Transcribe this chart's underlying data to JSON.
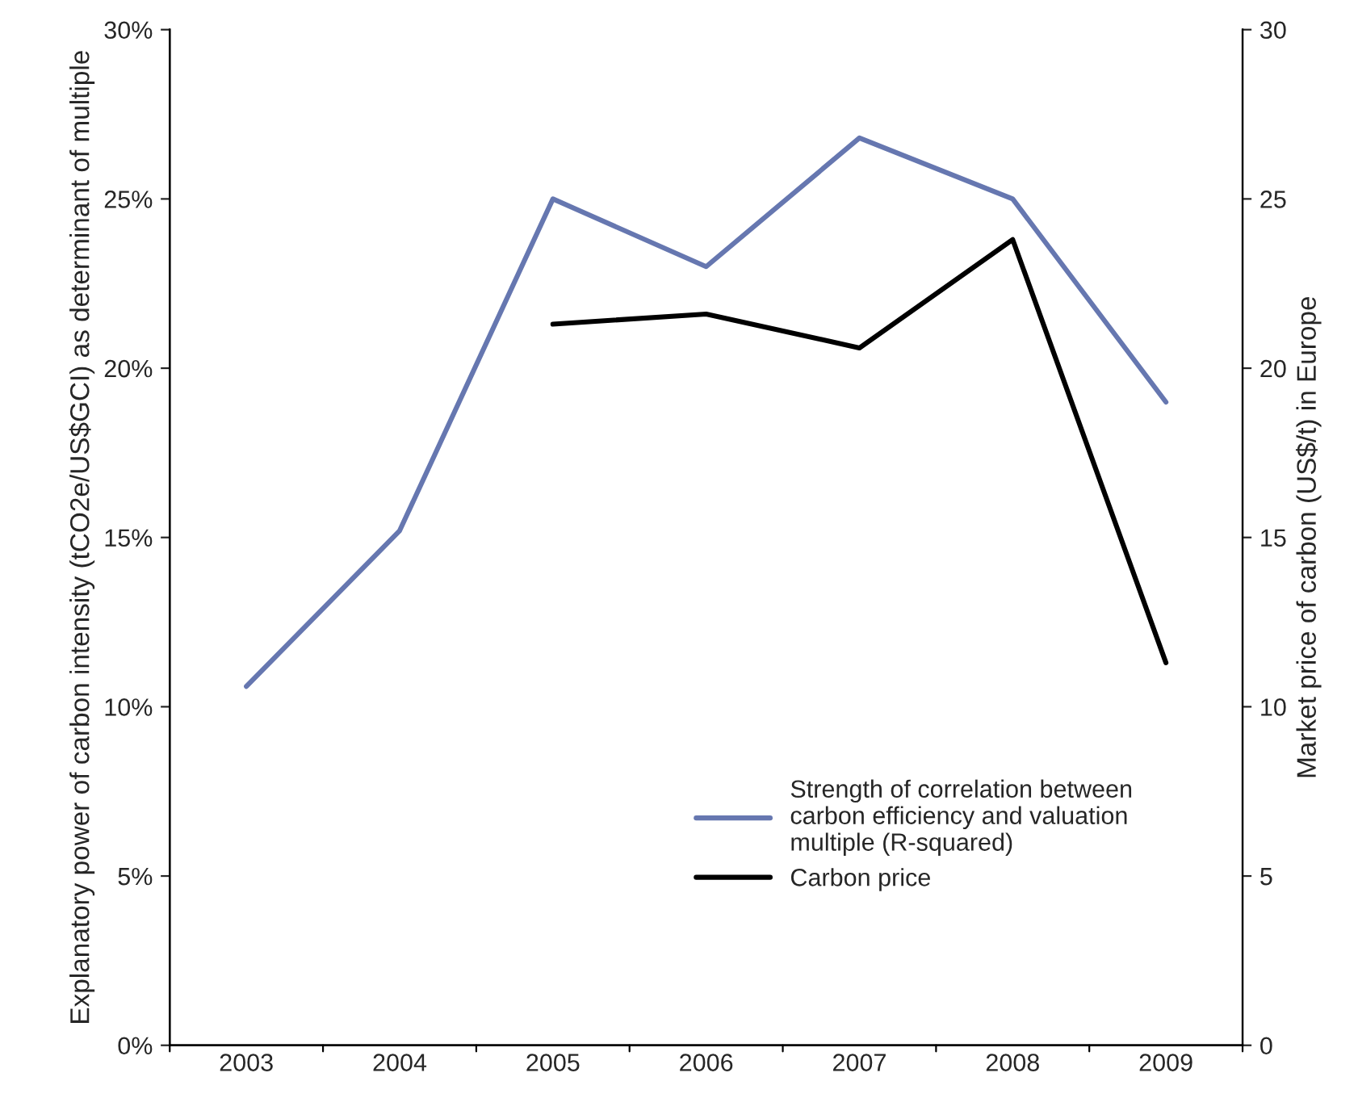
{
  "chart_data": {
    "type": "line",
    "ylabel": "Explanatory power of carbon intensity (tCO2e/US$GCI) as determinant of multiple",
    "y2label": "Market price of carbon (US$/t) in Europe",
    "categories": [
      "2003",
      "2004",
      "2005",
      "2006",
      "2007",
      "2008",
      "2009"
    ],
    "series": [
      {
        "name": "Strength of correlation between carbon efficiency and valuation multiple (R-squared)",
        "color": "#6677b0",
        "values": [
          10.6,
          15.2,
          25.0,
          23.0,
          26.8,
          25.0,
          19.0
        ]
      },
      {
        "name": "Carbon price",
        "color": "#000000",
        "axis": "y2",
        "values": [
          null,
          null,
          21.3,
          21.6,
          20.6,
          23.8,
          11.3
        ]
      }
    ],
    "ylim": [
      0,
      30
    ],
    "yticks": [
      {
        "value": 0,
        "label": "0%"
      },
      {
        "value": 5,
        "label": "5%"
      },
      {
        "value": 10,
        "label": "10%"
      },
      {
        "value": 15,
        "label": "15%"
      },
      {
        "value": 20,
        "label": "20%"
      },
      {
        "value": 25,
        "label": "25%"
      },
      {
        "value": 30,
        "label": "30%"
      }
    ],
    "y2lim": [
      0,
      30
    ],
    "y2ticks": [
      0,
      5,
      10,
      15,
      20,
      25,
      30
    ],
    "grid": false,
    "legend": "bottom right",
    "marker": "none",
    "line_style": "solid"
  }
}
